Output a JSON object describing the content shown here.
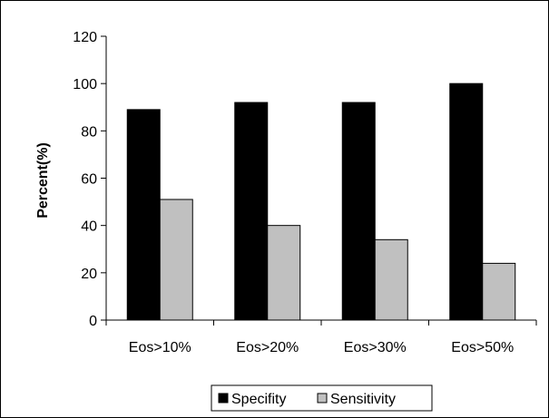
{
  "chart_data": {
    "type": "bar",
    "title": "",
    "xlabel": "",
    "ylabel": "Percent(%)",
    "ylim": [
      0,
      120
    ],
    "yticks": [
      0,
      20,
      40,
      60,
      80,
      100,
      120
    ],
    "grid": false,
    "legend_position": "bottom",
    "categories": [
      "Eos>10%",
      "Eos>20%",
      "Eos>30%",
      "Eos>50%"
    ],
    "series": [
      {
        "name": "Specifity",
        "color": "#000000",
        "values": [
          89,
          92,
          92,
          100
        ]
      },
      {
        "name": "Sensitivity",
        "color": "#c0c0c0",
        "values": [
          51,
          40,
          34,
          24
        ]
      }
    ]
  }
}
